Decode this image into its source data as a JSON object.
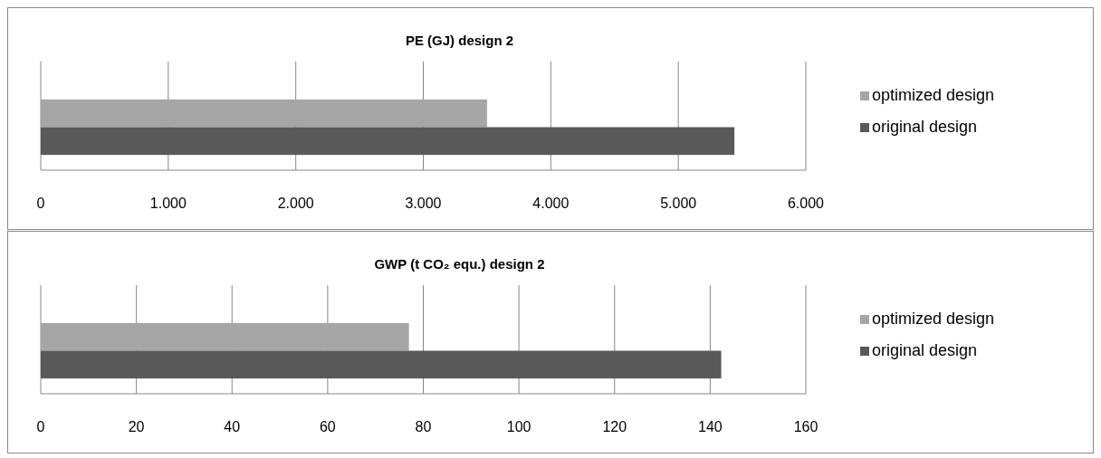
{
  "chart_data": [
    {
      "type": "bar",
      "orientation": "horizontal",
      "title": "PE  (GJ) design 2",
      "categories": [
        null
      ],
      "series": [
        {
          "name": "optimized design",
          "color": "#a6a6a6",
          "values": [
            3500
          ]
        },
        {
          "name": "original design",
          "color": "#595959",
          "values": [
            5440
          ]
        }
      ],
      "xlim": [
        0,
        6000
      ],
      "xticks": [
        0,
        {
          "value": 1000,
          "label": "1.000"
        },
        {
          "value": 2000,
          "label": "2.000"
        },
        {
          "value": 3000,
          "label": "3.000"
        },
        {
          "value": 4000,
          "label": "4.000"
        },
        {
          "value": 5000,
          "label": "5.000"
        },
        {
          "value": 6000,
          "label": "6.000"
        }
      ],
      "grid": "x",
      "legend": "right"
    },
    {
      "type": "bar",
      "orientation": "horizontal",
      "title": "GWP  (t CO₂ equ.) design 2",
      "categories": [
        null
      ],
      "series": [
        {
          "name": "optimized design",
          "color": "#a6a6a6",
          "values": [
            77
          ]
        },
        {
          "name": "original design",
          "color": "#595959",
          "values": [
            142.3
          ]
        }
      ],
      "xlim": [
        0,
        160
      ],
      "xticks": [
        0,
        20,
        40,
        60,
        80,
        100,
        120,
        140,
        160
      ],
      "grid": "x",
      "legend": "right"
    }
  ]
}
